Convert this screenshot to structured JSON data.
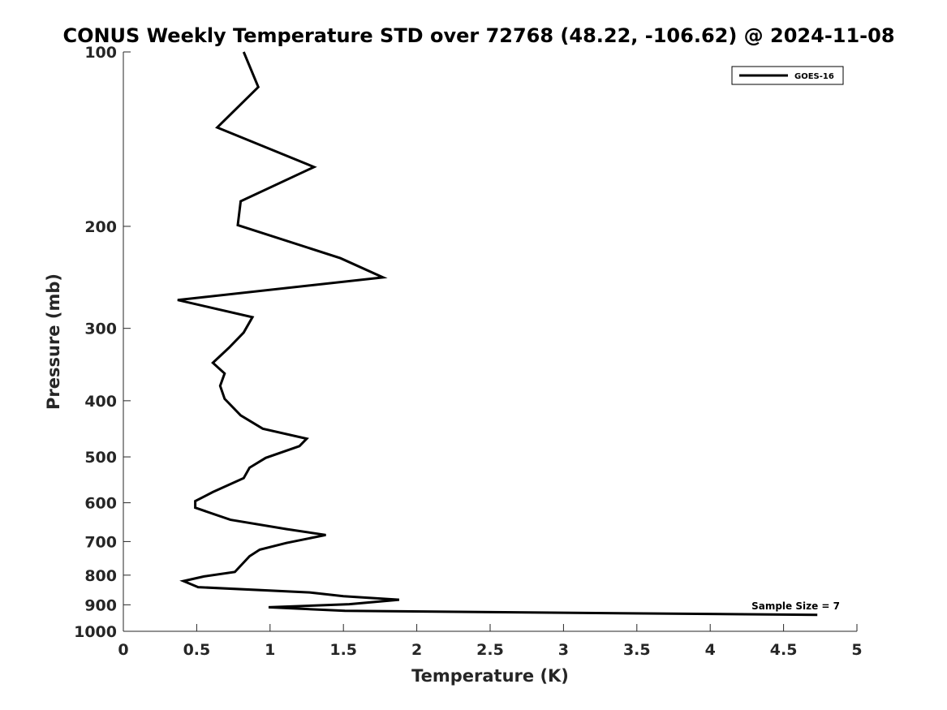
{
  "chart_data": {
    "type": "line",
    "title": "CONUS Weekly Temperature STD over 72768 (48.22, -106.62) @ 2024-11-08",
    "xlabel": "Temperature (K)",
    "ylabel": "Pressure (mb)",
    "xlim": [
      0,
      5
    ],
    "ylim": [
      100,
      1000
    ],
    "yscale": "log",
    "y_reversed": true,
    "x_ticks": [
      "0",
      "0.5",
      "1",
      "1.5",
      "2",
      "2.5",
      "3",
      "3.5",
      "4",
      "4.5",
      "5"
    ],
    "y_ticks": [
      "100",
      "200",
      "300",
      "400",
      "500",
      "600",
      "700",
      "800",
      "900",
      "1000"
    ],
    "legend_position": "top-right",
    "annotation": "Sample Size = 7",
    "series": [
      {
        "name": "GOES-16",
        "color": "#000000",
        "x": [
          0.82,
          0.92,
          0.64,
          1.3,
          0.8,
          0.78,
          1.48,
          1.77,
          0.37,
          0.88,
          0.82,
          0.72,
          0.61,
          0.69,
          0.66,
          0.69,
          0.8,
          0.95,
          1.25,
          1.2,
          0.97,
          0.86,
          0.82,
          0.61,
          0.49,
          0.49,
          0.73,
          1.11,
          1.38,
          1.11,
          0.93,
          0.86,
          0.76,
          0.55,
          0.41,
          0.51,
          1.27,
          1.5,
          1.88,
          1.54,
          0.99,
          1.51,
          4.73
        ],
        "y": [
          100,
          115,
          135,
          158,
          181,
          199,
          227,
          245,
          268,
          287,
          305,
          324,
          344,
          359,
          377,
          397,
          424,
          447,
          465,
          479,
          502,
          522,
          544,
          575,
          596,
          612,
          642,
          666,
          682,
          704,
          723,
          742,
          790,
          804,
          819,
          839,
          857,
          870,
          882,
          898,
          909,
          922,
          937
        ]
      }
    ]
  }
}
